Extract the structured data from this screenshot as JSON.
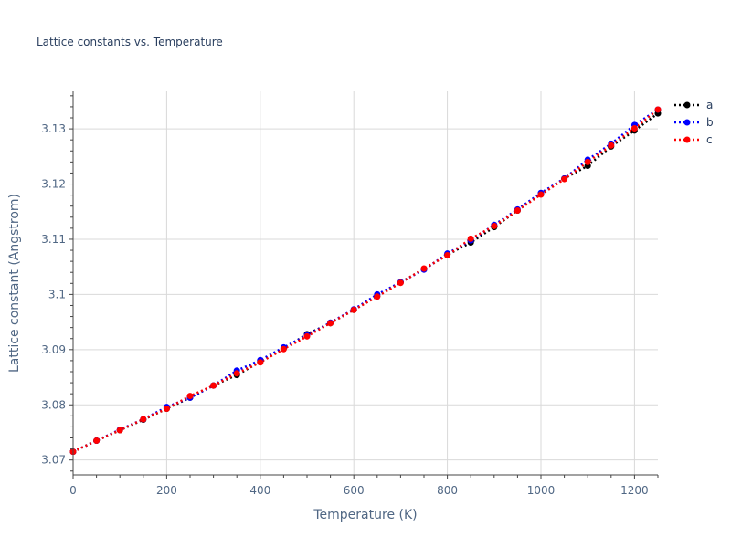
{
  "chart_data": {
    "type": "line",
    "title": "Lattice constants vs. Temperature",
    "xlabel": "Temperature (K)",
    "ylabel": "Lattice constant (Angstrom)",
    "xlim": [
      0,
      1250
    ],
    "ylim": [
      3.0673,
      3.1368
    ],
    "x_ticks": [
      0,
      200,
      400,
      600,
      800,
      1000,
      1200
    ],
    "x_tick_labels": [
      "0",
      "200",
      "400",
      "600",
      "800",
      "1000",
      "1200"
    ],
    "y_ticks": [
      3.07,
      3.08,
      3.09,
      3.1,
      3.11,
      3.12,
      3.13
    ],
    "y_tick_labels": [
      "3.07",
      "3.08",
      "3.09",
      "3.1",
      "3.11",
      "3.12",
      "3.13"
    ],
    "grid": true,
    "legend_position": "top-right",
    "line_style": "dotted",
    "x": [
      0,
      50,
      100,
      150,
      200,
      250,
      300,
      350,
      400,
      450,
      500,
      550,
      600,
      650,
      700,
      750,
      800,
      850,
      900,
      950,
      1000,
      1050,
      1100,
      1150,
      1200,
      1250
    ],
    "series": [
      {
        "name": "a",
        "color": "#000000",
        "values": [
          3.0715,
          3.0735,
          3.0754,
          3.0773,
          3.0793,
          3.0813,
          3.0835,
          3.0854,
          3.0878,
          3.0902,
          3.0928,
          3.0948,
          3.0972,
          3.0997,
          3.1022,
          3.1046,
          3.1072,
          3.1094,
          3.1122,
          3.1152,
          3.1182,
          3.121,
          3.1233,
          3.1268,
          3.1297,
          3.1328
        ]
      },
      {
        "name": "b",
        "color": "#0000ff",
        "values": [
          3.0715,
          3.0735,
          3.0755,
          3.0774,
          3.0796,
          3.0813,
          3.0835,
          3.0862,
          3.0881,
          3.0904,
          3.0926,
          3.0949,
          3.0973,
          3.1,
          3.1022,
          3.1045,
          3.1074,
          3.1098,
          3.1126,
          3.1154,
          3.1184,
          3.121,
          3.1244,
          3.1273,
          3.1307,
          3.1335
        ]
      },
      {
        "name": "c",
        "color": "#ff0000",
        "values": [
          3.0715,
          3.0735,
          3.0754,
          3.0774,
          3.0793,
          3.0816,
          3.0835,
          3.0857,
          3.0877,
          3.0901,
          3.0924,
          3.0948,
          3.0972,
          3.0996,
          3.1021,
          3.1047,
          3.1071,
          3.1101,
          3.1124,
          3.1152,
          3.1181,
          3.1209,
          3.124,
          3.127,
          3.1301,
          3.1335
        ]
      }
    ]
  }
}
